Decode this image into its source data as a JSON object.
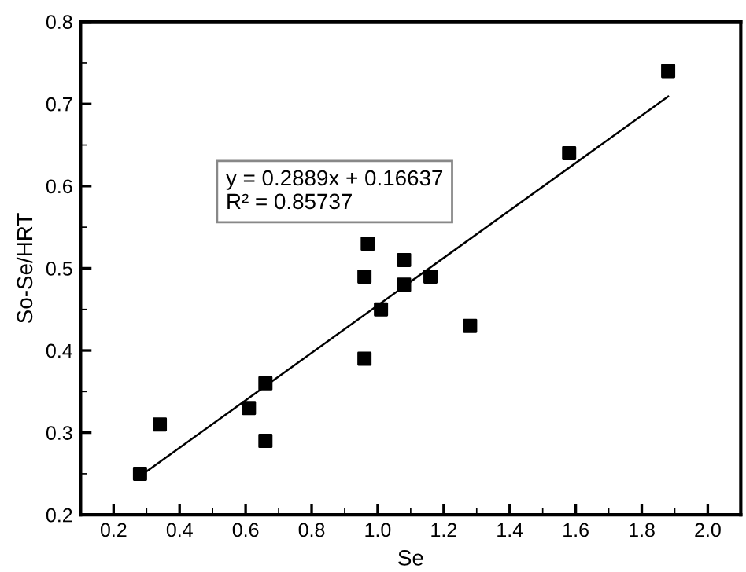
{
  "chart_data": {
    "type": "scatter",
    "xlabel": "Se",
    "ylabel": "So-Se/HRT",
    "xlim": [
      0.1,
      2.1
    ],
    "xticks": [
      0.2,
      0.4,
      0.6,
      0.8,
      {
        "value": 1,
        "label": "1.0"
      },
      1.2,
      1.4,
      1.6,
      1.8,
      {
        "value": 2,
        "label": "2.0"
      }
    ],
    "ylim": [
      0.2,
      0.8
    ],
    "yticks": [
      0.2,
      0.3,
      0.4,
      0.5,
      0.6,
      0.7,
      0.8
    ],
    "grid": false,
    "series": [
      {
        "color": "#000000",
        "marker": "square",
        "x": [
          0.28,
          0.34,
          0.61,
          0.66,
          0.66,
          0.96,
          0.96,
          0.97,
          1.01,
          1.08,
          1.08,
          1.16,
          1.28,
          1.58,
          1.88
        ],
        "values": [
          0.25,
          0.31,
          0.33,
          0.36,
          0.29,
          0.39,
          0.49,
          0.53,
          0.45,
          0.51,
          0.48,
          0.49,
          0.43,
          0.64,
          0.74
        ]
      },
      {
        "type": "line",
        "color": "#000000",
        "line_style": "solid",
        "x": [
          0.28,
          1.88
        ],
        "values": [
          0.247,
          0.709
        ]
      }
    ],
    "annotations": [
      "y = 0.2889x + 0.16637\nR² = 0.85737"
    ]
  }
}
